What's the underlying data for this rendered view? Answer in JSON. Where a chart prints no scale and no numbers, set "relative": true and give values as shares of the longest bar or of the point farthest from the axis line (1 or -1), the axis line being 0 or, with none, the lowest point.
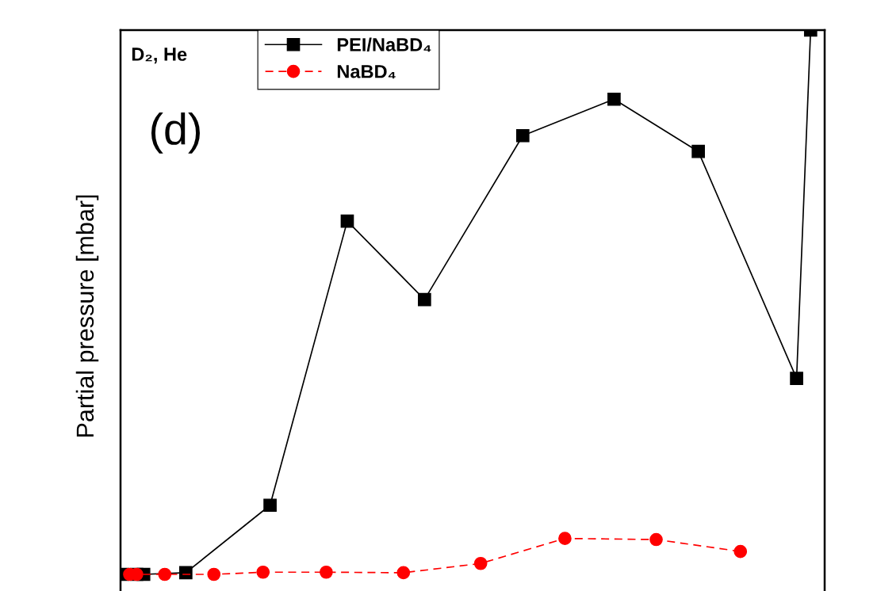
{
  "chart_data": {
    "type": "line",
    "relative": true,
    "ylabel": "Partial pressure [mbar]",
    "annotations": [
      "D₂, He",
      "(d)"
    ],
    "legend": "top left",
    "categories": [
      null,
      null,
      null,
      null,
      null,
      null,
      null,
      null,
      null,
      null,
      null,
      null,
      null,
      null,
      null,
      null,
      null,
      null,
      null,
      null,
      null,
      null,
      null,
      null,
      null,
      null,
      null,
      null,
      null,
      null,
      null,
      null,
      null,
      null,
      null,
      null,
      null,
      null,
      null,
      null,
      null,
      null,
      null,
      null,
      null,
      null,
      null,
      null,
      null,
      null,
      null,
      null,
      null,
      null,
      null,
      null,
      null,
      null,
      null,
      null,
      null,
      null,
      null,
      null,
      null,
      null,
      null,
      null,
      null,
      null,
      null,
      null,
      null,
      null,
      null,
      null,
      null,
      null,
      null,
      null,
      null,
      null,
      null,
      null,
      null,
      null,
      null,
      null,
      null,
      null,
      null,
      null,
      null,
      null,
      null,
      null,
      null,
      null,
      null,
      null,
      null
    ],
    "series": [
      {
        "name": "PEI/NaBD₄",
        "color": "#000000",
        "marker": "square",
        "line_style": "solid",
        "values": [
          0,
          null,
          0,
          0,
          null,
          null,
          null,
          null,
          null,
          0.003,
          null,
          null,
          null,
          null,
          null,
          null,
          null,
          null,
          null,
          null,
          null,
          0.127,
          null,
          null,
          null,
          null,
          null,
          null,
          null,
          null,
          null,
          null,
          0.649,
          null,
          null,
          null,
          null,
          null,
          null,
          null,
          null,
          null,
          null,
          0.505,
          null,
          null,
          null,
          null,
          null,
          null,
          null,
          null,
          null,
          null,
          null,
          null,
          null,
          0.806,
          null,
          null,
          null,
          null,
          null,
          null,
          null,
          null,
          null,
          null,
          null,
          null,
          0.873,
          null,
          null,
          null,
          null,
          null,
          null,
          null,
          null,
          null,
          null,
          null,
          0.777,
          null,
          null,
          null,
          null,
          null,
          null,
          null,
          null,
          null,
          null,
          null,
          null,
          null,
          0.36,
          null,
          1.0,
          null,
          null
        ]
      },
      {
        "name": "NaBD₄",
        "color": "#ff0000",
        "marker": "circle",
        "line_style": "dashed",
        "values": [
          null,
          0,
          0,
          null,
          null,
          null,
          0,
          null,
          null,
          null,
          null,
          null,
          null,
          0,
          null,
          null,
          null,
          null,
          null,
          null,
          0.004,
          null,
          null,
          null,
          null,
          null,
          null,
          null,
          null,
          0.004,
          null,
          null,
          null,
          null,
          null,
          null,
          null,
          null,
          null,
          null,
          0.003,
          null,
          null,
          null,
          null,
          null,
          null,
          null,
          null,
          null,
          null,
          0.02,
          null,
          null,
          null,
          null,
          null,
          null,
          null,
          null,
          null,
          null,
          null,
          0.066,
          null,
          null,
          null,
          null,
          null,
          null,
          null,
          null,
          null,
          null,
          null,
          null,
          0.064,
          null,
          null,
          null,
          null,
          null,
          null,
          null,
          null,
          null,
          null,
          null,
          0.042,
          null,
          null,
          null,
          null,
          null,
          null,
          null,
          null,
          null,
          null,
          null,
          null
        ]
      }
    ]
  }
}
